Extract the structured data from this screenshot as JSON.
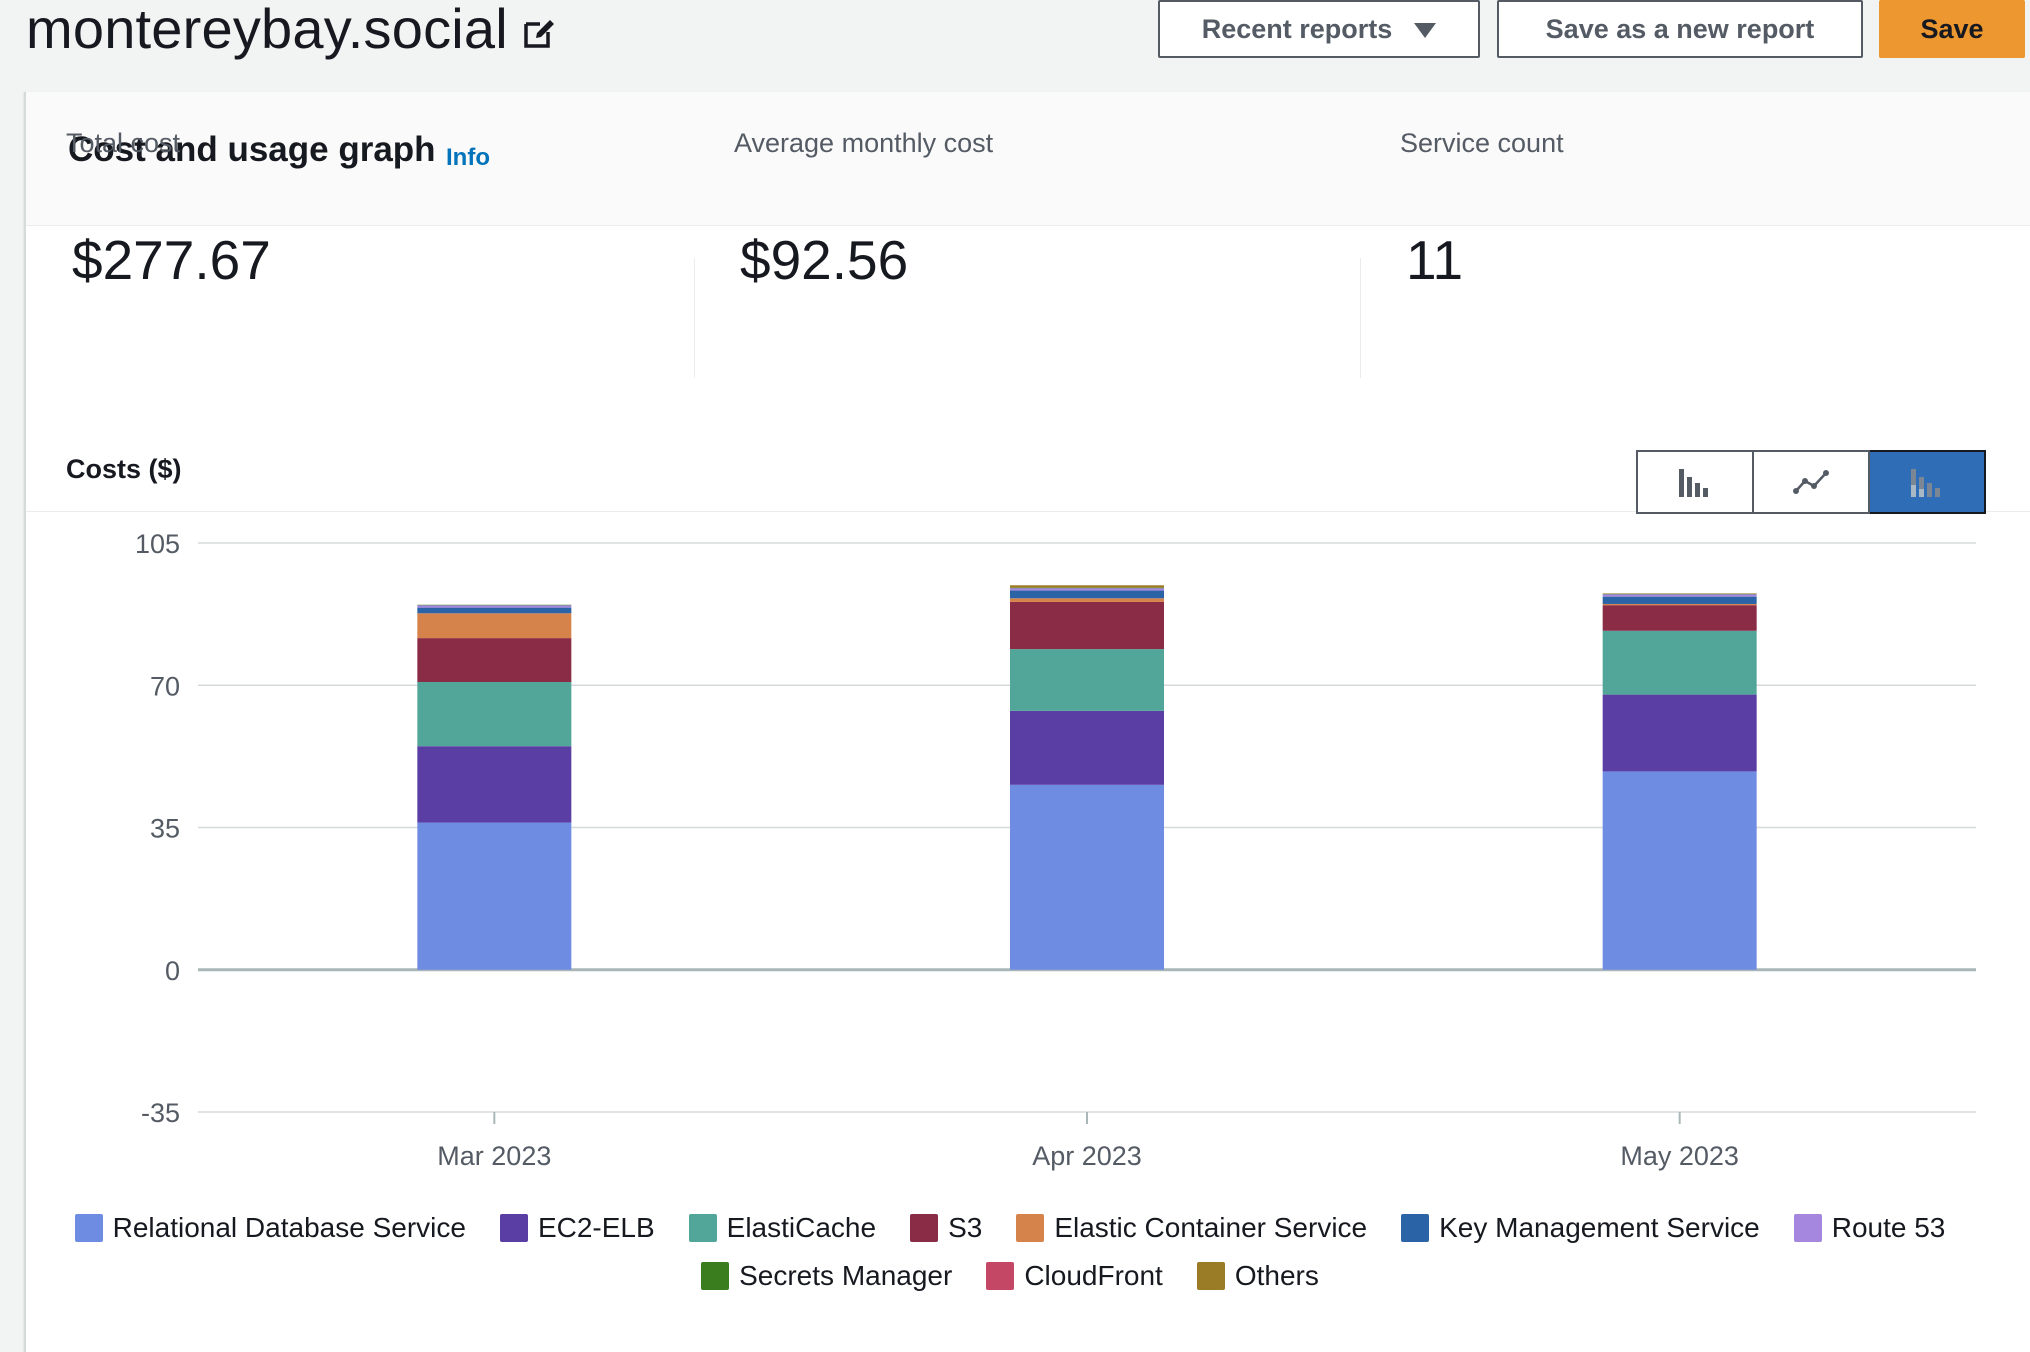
{
  "header": {
    "title": "montereybay.social",
    "buttons": {
      "recent_reports": "Recent reports",
      "save_as_new": "Save as a new report",
      "save": "Save"
    }
  },
  "panel": {
    "title": "Cost and usage graph",
    "info": "Info"
  },
  "metrics": {
    "total_cost": {
      "label": "Total cost",
      "value": "$277.67"
    },
    "avg_monthly": {
      "label": "Average monthly cost",
      "value": "$92.56"
    },
    "service_count": {
      "label": "Service count",
      "value": "11"
    }
  },
  "chart_toggle": {
    "options": [
      "bar-chart-icon",
      "line-chart-icon",
      "stacked-bar-chart-icon"
    ],
    "selected": "stacked-bar-chart-icon"
  },
  "chart_data": {
    "type": "bar",
    "stacked": true,
    "title": "Costs ($)",
    "xlabel": "",
    "ylabel": "",
    "categories": [
      "Mar 2023",
      "Apr 2023",
      "May 2023"
    ],
    "ylim": [
      -35,
      105
    ],
    "yticks": [
      "105",
      "70",
      "35",
      "0",
      "-35"
    ],
    "grid": true,
    "legend_position": "bottom",
    "series": [
      {
        "name": "Relational Database Service",
        "color": "#6f8ce3",
        "values": [
          36.2,
          45.5,
          48.8
        ]
      },
      {
        "name": "EC2-ELB",
        "color": "#5a3ea3",
        "values": [
          18.8,
          18.2,
          18.9
        ]
      },
      {
        "name": "ElastiCache",
        "color": "#52a699",
        "values": [
          15.8,
          15.2,
          15.7
        ]
      },
      {
        "name": "S3",
        "color": "#8b2c47",
        "values": [
          10.8,
          11.6,
          6.3
        ]
      },
      {
        "name": "Elastic Container Service",
        "color": "#d6834b",
        "values": [
          6.1,
          0.9,
          0.3
        ]
      },
      {
        "name": "Key Management Service",
        "color": "#2b64a6",
        "values": [
          1.4,
          1.9,
          1.8
        ]
      },
      {
        "name": "Route 53",
        "color": "#a587e0",
        "values": [
          0.6,
          0.6,
          0.6
        ]
      },
      {
        "name": "Secrets Manager",
        "color": "#3a7d1f",
        "values": [
          0.1,
          0.1,
          0.1
        ]
      },
      {
        "name": "CloudFront",
        "color": "#c54766",
        "values": [
          0.0,
          0.0,
          0.0
        ]
      },
      {
        "name": "Others",
        "color": "#9a7c26",
        "values": [
          0.0,
          0.6,
          0.1
        ]
      }
    ]
  }
}
